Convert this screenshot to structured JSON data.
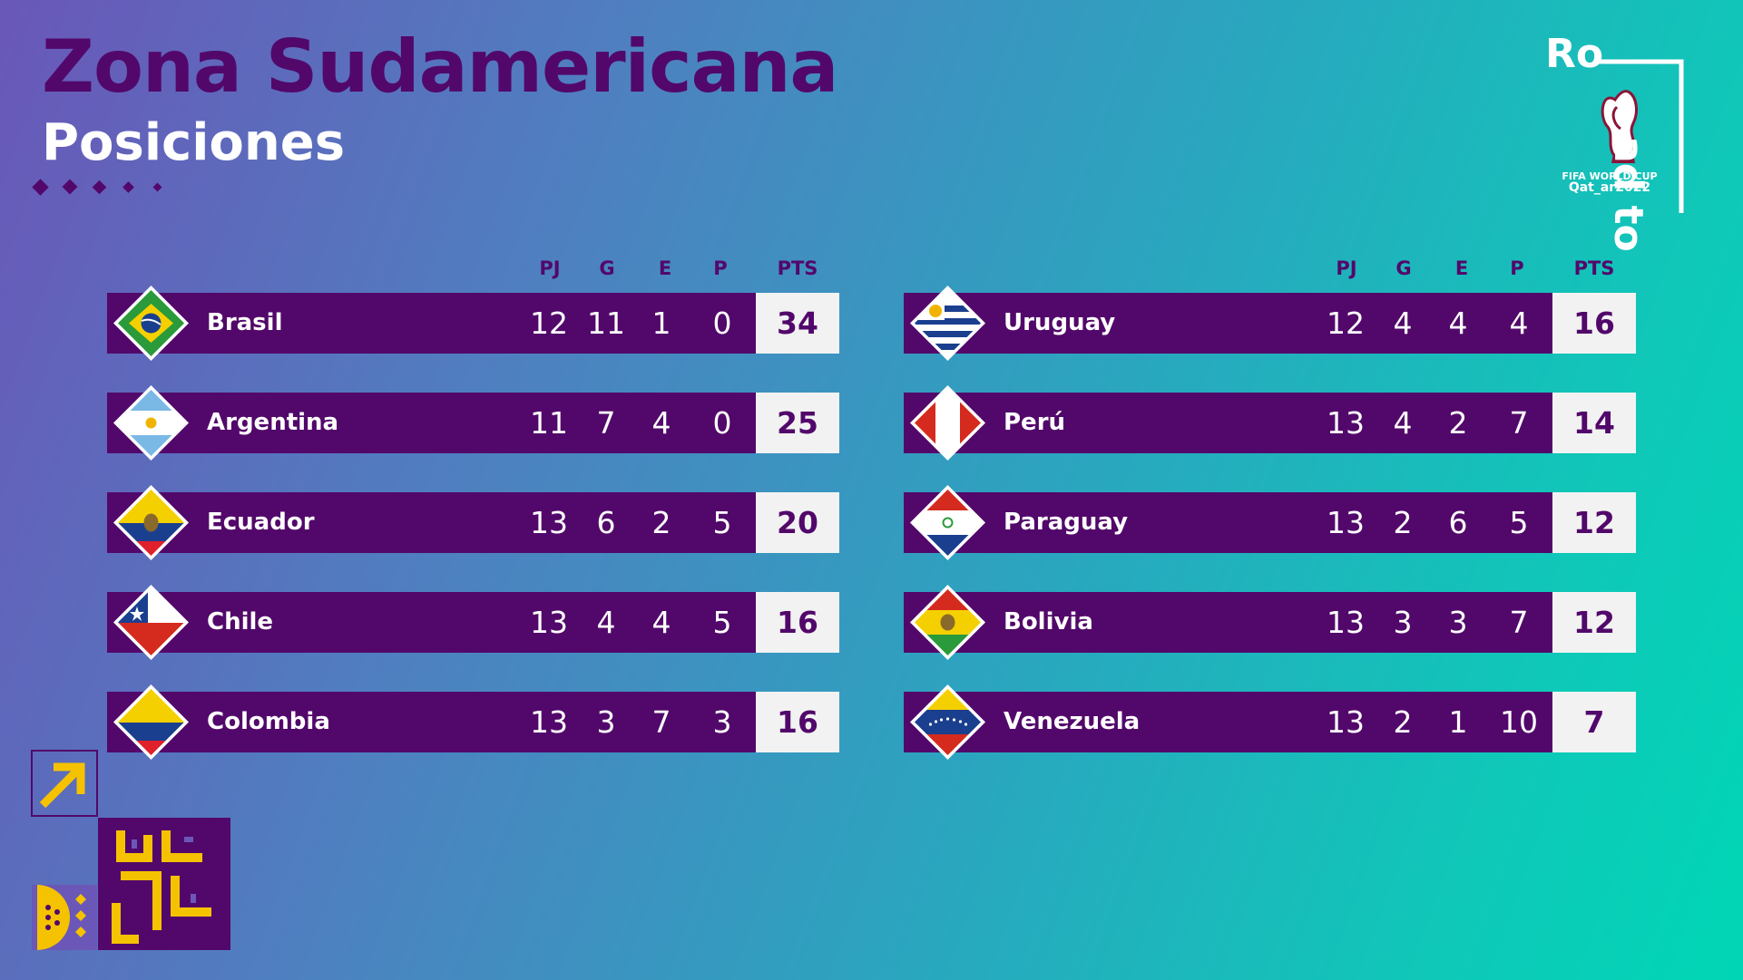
{
  "title": "Zona Sudamericana",
  "subtitle": "Posiciones",
  "logo": {
    "ro": "Ro",
    "adto": "ad to",
    "wc_line1": "FIFA WORLD CUP",
    "wc_line2": "Qat_ar2022"
  },
  "columns": [
    "PJ",
    "G",
    "E",
    "P",
    "PTS"
  ],
  "colors": {
    "primary": "#52086a",
    "pts_bg": "#f2f2f2",
    "accent": "#f5c200"
  },
  "left_table": [
    {
      "team": "Brasil",
      "pj": "12",
      "g": "11",
      "e": "1",
      "p": "0",
      "pts": "34",
      "flag": "brazil-flag-icon"
    },
    {
      "team": "Argentina",
      "pj": "11",
      "g": "7",
      "e": "4",
      "p": "0",
      "pts": "25",
      "flag": "argentina-flag-icon"
    },
    {
      "team": "Ecuador",
      "pj": "13",
      "g": "6",
      "e": "2",
      "p": "5",
      "pts": "20",
      "flag": "ecuador-flag-icon"
    },
    {
      "team": "Chile",
      "pj": "13",
      "g": "4",
      "e": "4",
      "p": "5",
      "pts": "16",
      "flag": "chile-flag-icon"
    },
    {
      "team": "Colombia",
      "pj": "13",
      "g": "3",
      "e": "7",
      "p": "3",
      "pts": "16",
      "flag": "colombia-flag-icon"
    }
  ],
  "right_table": [
    {
      "team": "Uruguay",
      "pj": "12",
      "g": "4",
      "e": "4",
      "p": "4",
      "pts": "16",
      "flag": "uruguay-flag-icon"
    },
    {
      "team": "Perú",
      "pj": "13",
      "g": "4",
      "e": "2",
      "p": "7",
      "pts": "14",
      "flag": "peru-flag-icon"
    },
    {
      "team": "Paraguay",
      "pj": "13",
      "g": "2",
      "e": "6",
      "p": "5",
      "pts": "12",
      "flag": "paraguay-flag-icon"
    },
    {
      "team": "Bolivia",
      "pj": "13",
      "g": "3",
      "e": "3",
      "p": "7",
      "pts": "12",
      "flag": "bolivia-flag-icon"
    },
    {
      "team": "Venezuela",
      "pj": "13",
      "g": "2",
      "e": "1",
      "p": "10",
      "pts": "7",
      "flag": "venezuela-flag-icon"
    }
  ]
}
